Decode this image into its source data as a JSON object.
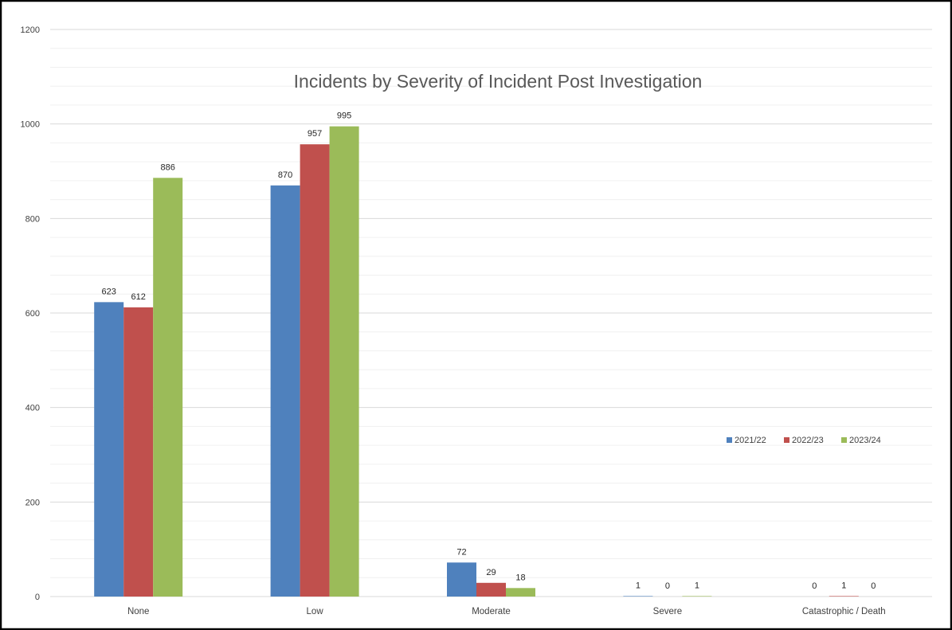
{
  "chart_data": {
    "type": "bar",
    "title": "Incidents by Severity of Incident Post Investigation",
    "categories": [
      "None",
      "Low",
      "Moderate",
      "Severe",
      "Catastrophic / Death"
    ],
    "series": [
      {
        "name": "2021/22",
        "color": "#4f81bd",
        "values": [
          623,
          870,
          72,
          1,
          0
        ]
      },
      {
        "name": "2022/23",
        "color": "#c0504d",
        "values": [
          612,
          957,
          29,
          0,
          1
        ]
      },
      {
        "name": "2023/24",
        "color": "#9bbb59",
        "values": [
          886,
          995,
          18,
          1,
          0
        ]
      }
    ],
    "ylim": [
      0,
      1200
    ],
    "yticks": [
      0,
      200,
      400,
      600,
      800,
      1000,
      1200
    ],
    "grid": true,
    "legend_position": "right"
  }
}
